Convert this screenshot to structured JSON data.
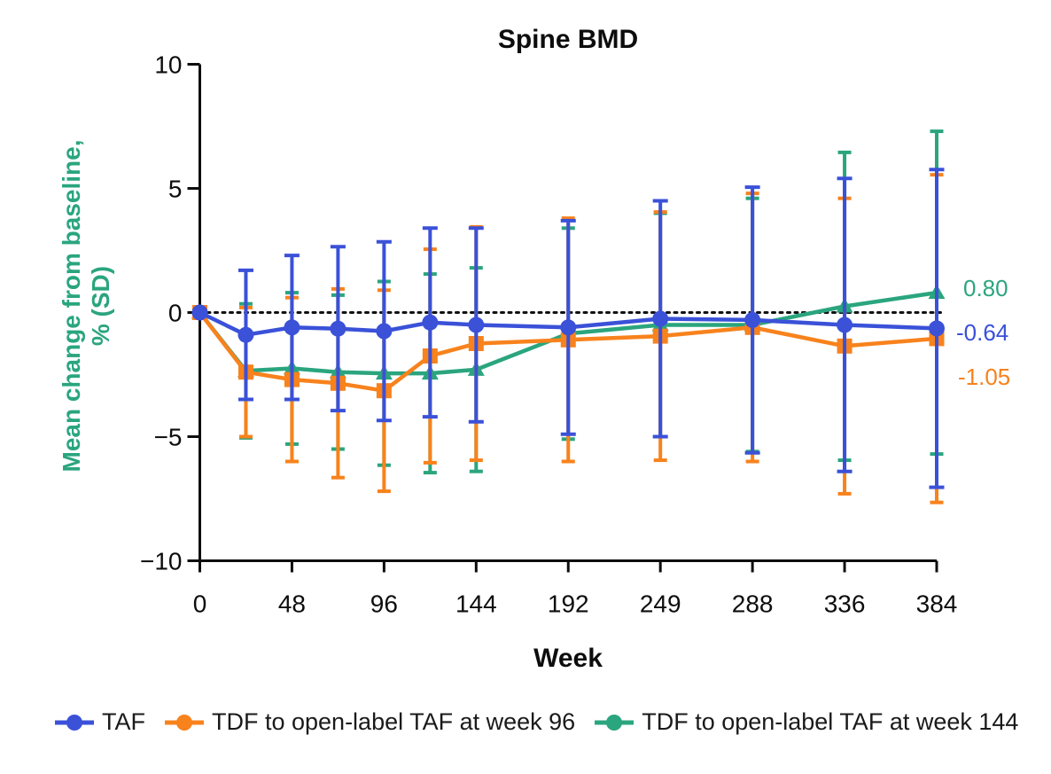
{
  "title": "Spine BMD",
  "axes": {
    "ylabel_line1": "Mean change from baseline,",
    "ylabel_line2": "% (SD)",
    "ylabel_color": "#2AA57E",
    "xlabel": "Week"
  },
  "chart_data": {
    "type": "line",
    "title": "Spine BMD",
    "xlabel": "Week",
    "ylabel": "Mean change from baseline, % (SD)",
    "ylim": [
      -10,
      10
    ],
    "y_ticks": [
      10,
      5,
      0,
      -5,
      -10
    ],
    "x_ticks": [
      0,
      48,
      96,
      144,
      192,
      249,
      288,
      336,
      384
    ],
    "x": [
      0,
      24,
      48,
      72,
      96,
      120,
      144,
      192,
      249,
      288,
      336,
      384
    ],
    "zero_reference_line": true,
    "error_bars": "mean ± SD",
    "legend_position": "bottom",
    "series": [
      {
        "name": "TAF",
        "color": "#3A51D8",
        "marker": "circle",
        "mean": [
          0,
          -0.9,
          -0.6,
          -0.65,
          -0.75,
          -0.4,
          -0.5,
          -0.6,
          -0.25,
          -0.3,
          -0.5,
          -0.64
        ],
        "sd": [
          0,
          2.6,
          2.9,
          3.3,
          3.6,
          3.8,
          3.9,
          4.3,
          4.75,
          5.35,
          5.9,
          6.4
        ],
        "end_label": "-0.64"
      },
      {
        "name": "TDF to open-label TAF at week 96",
        "color": "#F8821C",
        "marker": "square",
        "mean": [
          0,
          -2.4,
          -2.7,
          -2.85,
          -3.15,
          -1.75,
          -1.25,
          -1.1,
          -0.95,
          -0.6,
          -1.35,
          -1.05
        ],
        "sd": [
          0,
          2.6,
          3.3,
          3.8,
          4.05,
          4.3,
          4.7,
          4.9,
          5.0,
          5.4,
          5.95,
          6.6
        ],
        "end_label": "-1.05"
      },
      {
        "name": "TDF to open-label TAF at week 144",
        "color": "#2AA57E",
        "marker": "triangle",
        "mean": [
          0,
          -2.35,
          -2.25,
          -2.4,
          -2.45,
          -2.45,
          -2.3,
          -0.85,
          -0.5,
          -0.5,
          0.25,
          0.8
        ],
        "sd": [
          0,
          2.7,
          3.05,
          3.1,
          3.7,
          4.0,
          4.1,
          4.25,
          4.5,
          5.1,
          6.2,
          6.5
        ],
        "end_label": "0.80"
      }
    ]
  }
}
